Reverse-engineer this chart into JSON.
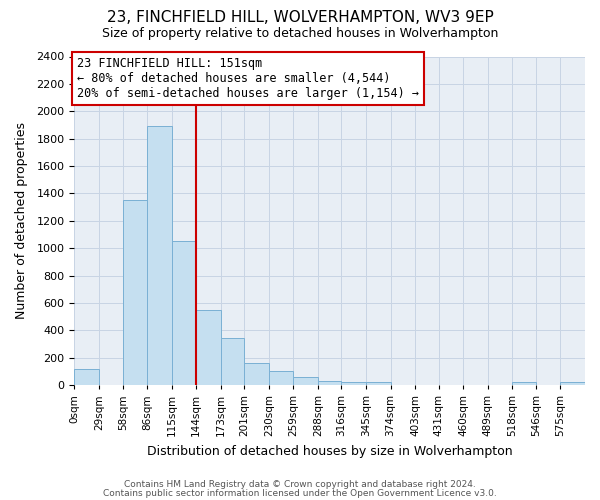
{
  "title": "23, FINCHFIELD HILL, WOLVERHAMPTON, WV3 9EP",
  "subtitle": "Size of property relative to detached houses in Wolverhampton",
  "xlabel": "Distribution of detached houses by size in Wolverhampton",
  "ylabel": "Number of detached properties",
  "footer_lines": [
    "Contains HM Land Registry data © Crown copyright and database right 2024.",
    "Contains public sector information licensed under the Open Government Licence v3.0."
  ],
  "bin_edges": [
    0,
    29,
    58,
    86,
    115,
    144,
    173,
    201,
    230,
    259,
    288,
    316,
    345,
    374,
    403,
    431,
    460,
    489,
    518,
    546,
    575,
    604
  ],
  "bin_labels": [
    "0sqm",
    "29sqm",
    "58sqm",
    "86sqm",
    "115sqm",
    "144sqm",
    "173sqm",
    "201sqm",
    "230sqm",
    "259sqm",
    "288sqm",
    "316sqm",
    "345sqm",
    "374sqm",
    "403sqm",
    "431sqm",
    "460sqm",
    "489sqm",
    "518sqm",
    "546sqm",
    "575sqm"
  ],
  "bar_heights": [
    120,
    0,
    1350,
    1890,
    1050,
    550,
    340,
    160,
    105,
    55,
    30,
    20,
    20,
    0,
    0,
    0,
    0,
    0,
    20,
    0,
    20
  ],
  "bar_color": "#c5dff0",
  "bar_edge_color": "#7ab0d4",
  "ylim": [
    0,
    2400
  ],
  "yticks": [
    0,
    200,
    400,
    600,
    800,
    1000,
    1200,
    1400,
    1600,
    1800,
    2000,
    2200,
    2400
  ],
  "vline_x_idx": 5,
  "vline_color": "#cc0000",
  "annotation_title": "23 FINCHFIELD HILL: 151sqm",
  "annotation_line1": "← 80% of detached houses are smaller (4,544)",
  "annotation_line2": "20% of semi-detached houses are larger (1,154) →",
  "background_color": "#ffffff",
  "plot_bg_color": "#e8eef5",
  "grid_color": "#c8d4e4"
}
